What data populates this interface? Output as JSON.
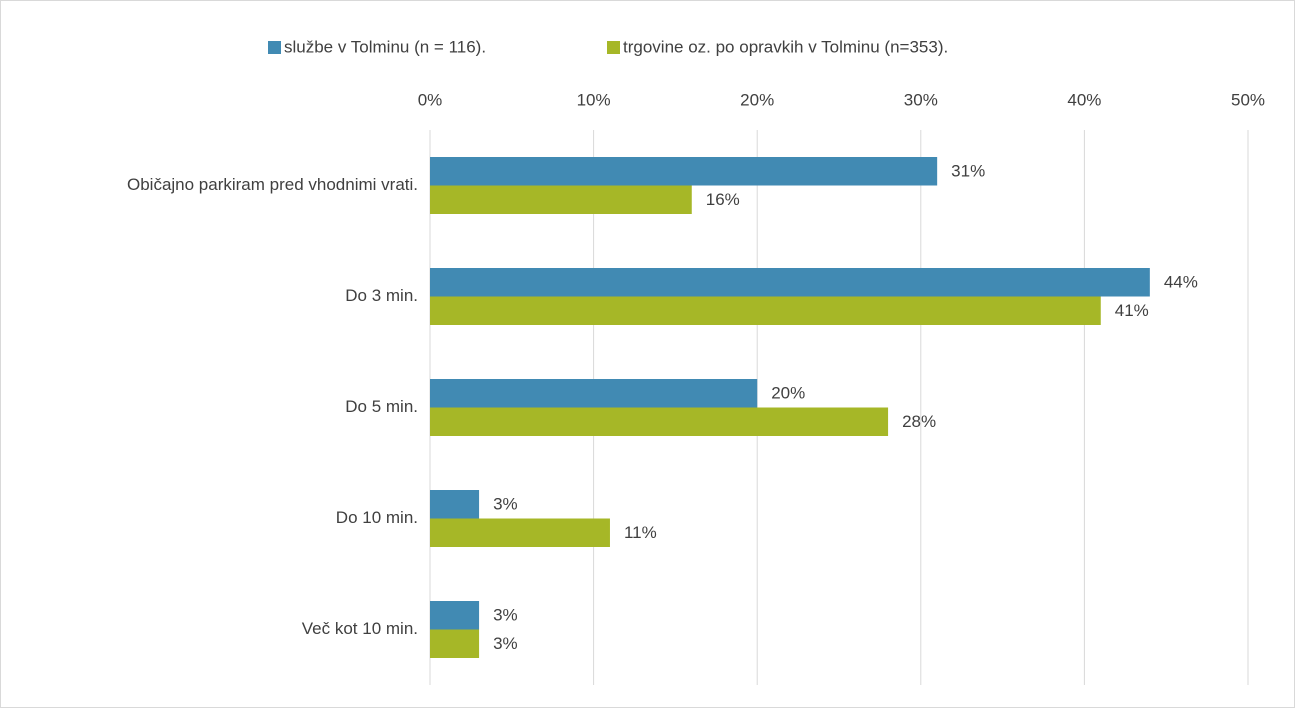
{
  "chart_data": {
    "type": "bar",
    "orientation": "horizontal",
    "categories": [
      "Običajno parkiram pred vhodnimi vrati.",
      "Do 3 min.",
      "Do 5 min.",
      "Do 10 min.",
      "Več kot 10 min."
    ],
    "series": [
      {
        "name": "službe v Tolminu (n = 116).",
        "color": "#418ab3",
        "values": [
          31,
          44,
          20,
          3,
          3
        ],
        "value_labels": [
          "31%",
          "44%",
          "20%",
          "3%",
          "3%"
        ]
      },
      {
        "name": "trgovine oz. po opravkih v Tolminu (n=353).",
        "color": "#a6b727",
        "values": [
          16,
          41,
          28,
          11,
          3
        ],
        "value_labels": [
          "16%",
          "41%",
          "28%",
          "11%",
          "3%"
        ]
      }
    ],
    "xlim": [
      0,
      50
    ],
    "xticks": [
      {
        "value": 0,
        "label": "0%"
      },
      {
        "value": 10,
        "label": "10%"
      },
      {
        "value": 20,
        "label": "20%"
      },
      {
        "value": 30,
        "label": "30%"
      },
      {
        "value": 40,
        "label": "40%"
      },
      {
        "value": 50,
        "label": "50%"
      }
    ],
    "grid": true,
    "legend": "top"
  }
}
